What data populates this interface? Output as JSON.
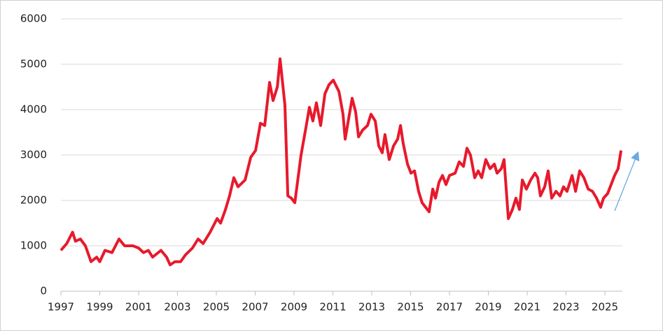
{
  "chart_data": {
    "type": "line",
    "x": [
      1997.0,
      1997.3,
      1997.6,
      1997.75,
      1998.0,
      1998.26,
      1998.55,
      1998.84,
      1999.0,
      1999.27,
      1999.63,
      1999.99,
      2000.28,
      2000.71,
      2001.0,
      2001.25,
      2001.5,
      2001.72,
      2002.15,
      2002.44,
      2002.62,
      2002.87,
      2003.16,
      2003.41,
      2003.77,
      2004.06,
      2004.32,
      2004.68,
      2005.04,
      2005.22,
      2005.47,
      2005.68,
      2005.9,
      2006.12,
      2006.48,
      2006.77,
      2007.02,
      2007.27,
      2007.49,
      2007.74,
      2007.92,
      2008.14,
      2008.28,
      2008.53,
      2008.68,
      2008.86,
      2009.04,
      2009.36,
      2009.61,
      2009.79,
      2009.97,
      2010.15,
      2010.37,
      2010.59,
      2010.8,
      2011.02,
      2011.31,
      2011.52,
      2011.63,
      2011.81,
      2011.99,
      2012.17,
      2012.32,
      2012.53,
      2012.78,
      2012.96,
      2013.18,
      2013.36,
      2013.54,
      2013.68,
      2013.9,
      2014.12,
      2014.33,
      2014.48,
      2014.62,
      2014.84,
      2015.02,
      2015.2,
      2015.41,
      2015.59,
      2015.77,
      2015.95,
      2016.14,
      2016.28,
      2016.46,
      2016.64,
      2016.82,
      2017.0,
      2017.29,
      2017.5,
      2017.72,
      2017.9,
      2018.08,
      2018.3,
      2018.48,
      2018.66,
      2018.87,
      2019.09,
      2019.31,
      2019.45,
      2019.67,
      2019.81,
      2020.03,
      2020.24,
      2020.42,
      2020.6,
      2020.75,
      2020.96,
      2021.18,
      2021.4,
      2021.54,
      2021.68,
      2021.9,
      2022.08,
      2022.26,
      2022.48,
      2022.69,
      2022.87,
      2023.05,
      2023.31,
      2023.49,
      2023.7,
      2023.92,
      2024.14,
      2024.36,
      2024.57,
      2024.78,
      2024.93,
      2025.14,
      2025.32,
      2025.5,
      2025.68,
      2025.83
    ],
    "series": [
      {
        "color": "#e8192c",
        "values": [
          900,
          1050,
          1300,
          1100,
          1150,
          1000,
          650,
          750,
          650,
          900,
          850,
          1150,
          1000,
          1000,
          950,
          850,
          900,
          750,
          900,
          750,
          580,
          650,
          650,
          800,
          950,
          1150,
          1050,
          1300,
          1600,
          1500,
          1800,
          2100,
          2500,
          2300,
          2450,
          2950,
          3100,
          3700,
          3650,
          4600,
          4200,
          4500,
          5120,
          4100,
          2100,
          2050,
          1950,
          3000,
          3600,
          4050,
          3750,
          4150,
          3650,
          4350,
          4550,
          4650,
          4400,
          3900,
          3350,
          3800,
          4250,
          3950,
          3400,
          3550,
          3650,
          3900,
          3750,
          3200,
          3050,
          3450,
          2900,
          3200,
          3350,
          3650,
          3250,
          2800,
          2600,
          2650,
          2200,
          1950,
          1850,
          1750,
          2250,
          2050,
          2400,
          2550,
          2350,
          2550,
          2600,
          2850,
          2750,
          3150,
          3000,
          2500,
          2650,
          2500,
          2900,
          2700,
          2800,
          2600,
          2700,
          2900,
          1600,
          1800,
          2050,
          1800,
          2450,
          2250,
          2450,
          2600,
          2500,
          2100,
          2300,
          2650,
          2050,
          2200,
          2100,
          2300,
          2200,
          2550,
          2200,
          2650,
          2500,
          2250,
          2200,
          2050,
          1850,
          2050,
          2150,
          2350,
          2550,
          2700,
          3100
        ]
      }
    ],
    "xlim": [
      1997,
      2025.9
    ],
    "xticks": [
      1997,
      1999,
      2001,
      2003,
      2005,
      2007,
      2009,
      2011,
      2013,
      2015,
      2017,
      2019,
      2021,
      2023,
      2025
    ],
    "ylim": [
      0,
      6000
    ],
    "yticks": [
      0,
      1000,
      2000,
      3000,
      4000,
      5000,
      6000
    ],
    "grid": true
  }
}
